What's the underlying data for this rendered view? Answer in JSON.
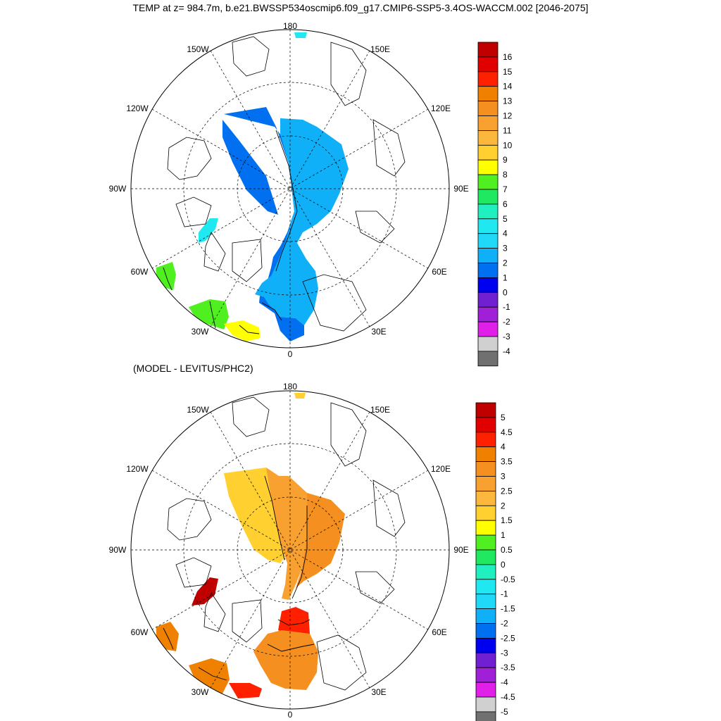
{
  "title": "TEMP at z= 984.7m, b.e21.BWSSP534oscmip6.f09_g17.CMIP6-SSP5-3.4OS-WACCM.002 [2046-2075]",
  "subtitle": "(MODEL - LEVITUS/PHC2)",
  "map_labels": {
    "lon_180": "180",
    "lon_150W": "150W",
    "lon_150E": "150E",
    "lon_120W": "120W",
    "lon_120E": "120E",
    "lon_90W": "90W",
    "lon_90E": "90E",
    "lon_60W": "60W",
    "lon_60E": "60E",
    "lon_30W": "30W",
    "lon_30E": "30E",
    "lon_0": "0"
  },
  "colorbar_top": {
    "labels": [
      "16",
      "15",
      "14",
      "13",
      "12",
      "11",
      "10",
      "9",
      "8",
      "7",
      "6",
      "5",
      "4",
      "3",
      "2",
      "1",
      "0",
      "-1",
      "-2",
      "-3",
      "-4"
    ],
    "colors": [
      "#c00000",
      "#e00000",
      "#ff2000",
      "#f08000",
      "#f59020",
      "#f8a030",
      "#fbb83c",
      "#ffd030",
      "#ffff00",
      "#50f020",
      "#20e860",
      "#20f0c0",
      "#20e8f0",
      "#20d8f8",
      "#10b0f8",
      "#0070f0",
      "#0000f0",
      "#7020d0",
      "#a020d8",
      "#e020e8",
      "#d0d0d0",
      "#707070"
    ]
  },
  "colorbar_bottom": {
    "labels": [
      "5",
      "4.5",
      "4",
      "3.5",
      "3",
      "2.5",
      "2",
      "1.5",
      "1",
      "0.5",
      "0",
      "-0.5",
      "-1",
      "-1.5",
      "-2",
      "-2.5",
      "-3",
      "-3.5",
      "-4",
      "-4.5",
      "-5"
    ],
    "colors": [
      "#c00000",
      "#e00000",
      "#ff2000",
      "#f08000",
      "#f59020",
      "#f8a030",
      "#fbb83c",
      "#ffd030",
      "#ffff00",
      "#50f020",
      "#20e860",
      "#20f0c0",
      "#20e8f0",
      "#20d8f8",
      "#10b0f8",
      "#0070f0",
      "#0000f0",
      "#7020d0",
      "#a020d8",
      "#e020e8",
      "#d0d0d0",
      "#707070"
    ]
  },
  "colors": {
    "top_arctic_deep": "#0070f0",
    "top_arctic_shelf": "#10b0f8",
    "top_baffin": "#20e8f0",
    "top_labrador": "#50f020",
    "top_atlantic": "#ffff00",
    "bot_arctic_west": "#ffd030",
    "bot_arctic_east": "#f8a030",
    "bot_arctic_far_east": "#f59020",
    "bot_fram": "#ff2000",
    "bot_nordic": "#f59020",
    "bot_baffin": "#c00000",
    "bot_labrador": "#f08000"
  }
}
